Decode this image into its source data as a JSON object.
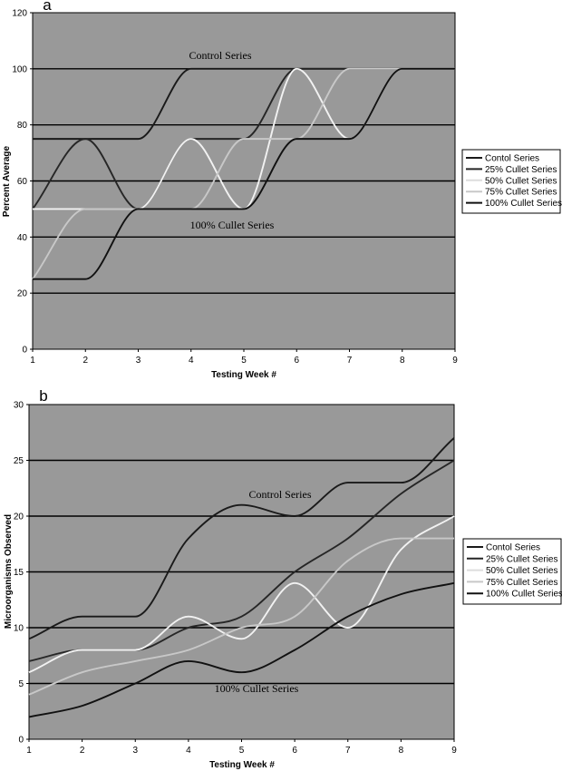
{
  "chart_data": [
    {
      "type": "line",
      "panel_label": "a",
      "xlabel": "Testing Week #",
      "ylabel": "Percent Average",
      "x": [
        1,
        2,
        3,
        4,
        5,
        6,
        7,
        8,
        9
      ],
      "xlim": [
        1,
        9
      ],
      "ylim": [
        0,
        120
      ],
      "yticks": [
        0,
        20,
        40,
        60,
        80,
        100,
        120
      ],
      "grid": "horizontal",
      "plot_background": "#999999",
      "legend_position": "right",
      "annotations": [
        "Control Series",
        "100% Cullet Series"
      ],
      "series": [
        {
          "name": "Contol Series",
          "color": "#1a1a1a",
          "values": [
            75,
            75,
            75,
            100,
            100,
            100,
            100,
            100,
            100
          ]
        },
        {
          "name": "25% Cullet Series",
          "color": "#262626",
          "values": [
            50,
            75,
            50,
            75,
            75,
            100,
            100,
            100,
            100
          ]
        },
        {
          "name": "50% Cullet Series",
          "color": "#f2f2f2",
          "values": [
            50,
            50,
            50,
            75,
            50,
            100,
            75,
            100,
            100
          ]
        },
        {
          "name": "75% Cullet Series",
          "color": "#c8c8c8",
          "values": [
            25,
            50,
            50,
            50,
            75,
            75,
            100,
            100,
            100
          ]
        },
        {
          "name": "100% Cullet Series",
          "color": "#111111",
          "values": [
            25,
            25,
            50,
            50,
            50,
            75,
            75,
            100,
            100
          ]
        }
      ]
    },
    {
      "type": "line",
      "panel_label": "b",
      "xlabel": "Testing Week #",
      "ylabel": "Microorganisms Observed",
      "x": [
        1,
        2,
        3,
        4,
        5,
        6,
        7,
        8,
        9
      ],
      "xlim": [
        1,
        9
      ],
      "ylim": [
        0,
        30
      ],
      "yticks": [
        0,
        5,
        10,
        15,
        20,
        25,
        30
      ],
      "grid": "horizontal",
      "plot_background": "#999999",
      "legend_position": "right",
      "annotations": [
        "Control Series",
        "100% Cullet Series"
      ],
      "series": [
        {
          "name": "Contol Series",
          "color": "#1a1a1a",
          "values": [
            9,
            11,
            11,
            18,
            21,
            20,
            23,
            23,
            27
          ]
        },
        {
          "name": "25% Cullet Series",
          "color": "#262626",
          "values": [
            7,
            8,
            8,
            10,
            11,
            15,
            18,
            22,
            25
          ]
        },
        {
          "name": "50% Cullet Series",
          "color": "#f2f2f2",
          "values": [
            6,
            8,
            8,
            11,
            9,
            14,
            10,
            17,
            20
          ]
        },
        {
          "name": "75% Cullet Series",
          "color": "#c8c8c8",
          "values": [
            4,
            6,
            7,
            8,
            10,
            11,
            16,
            18,
            18
          ]
        },
        {
          "name": "100% Cullet Series",
          "color": "#111111",
          "values": [
            2,
            3,
            5,
            7,
            6,
            8,
            11,
            13,
            14
          ]
        }
      ]
    }
  ]
}
